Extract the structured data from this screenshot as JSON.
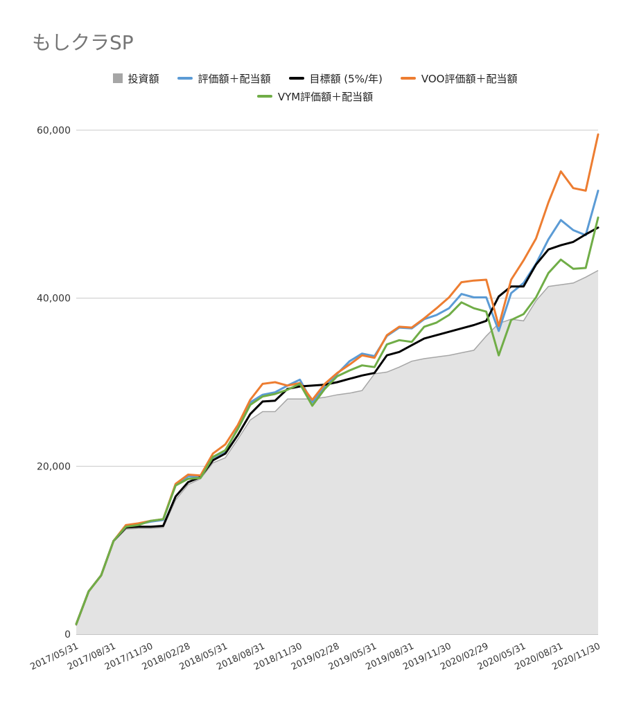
{
  "title": "もしクラSP",
  "chart_data": {
    "type": "line",
    "title": "もしクラSP",
    "xlabel": "",
    "ylabel": "",
    "ylim": [
      0,
      60000
    ],
    "yticks": [
      0,
      20000,
      40000,
      60000
    ],
    "ytick_labels": [
      "0",
      "20,000",
      "40,000",
      "60,000"
    ],
    "grid": true,
    "legend_position": "top",
    "x": [
      "2017/05/31",
      "2017/06/30",
      "2017/07/31",
      "2017/08/31",
      "2017/09/30",
      "2017/10/31",
      "2017/11/30",
      "2017/12/31",
      "2018/01/31",
      "2018/02/28",
      "2018/03/31",
      "2018/04/30",
      "2018/05/31",
      "2018/06/30",
      "2018/07/31",
      "2018/08/31",
      "2018/09/30",
      "2018/10/31",
      "2018/11/30",
      "2018/12/31",
      "2019/01/31",
      "2019/02/28",
      "2019/03/31",
      "2019/04/30",
      "2019/05/31",
      "2019/06/30",
      "2019/07/31",
      "2019/08/31",
      "2019/09/30",
      "2019/10/31",
      "2019/11/30",
      "2019/12/31",
      "2020/01/31",
      "2020/02/29",
      "2020/03/31",
      "2020/04/30",
      "2020/05/31",
      "2020/06/30",
      "2020/07/31",
      "2020/08/31",
      "2020/09/30",
      "2020/10/31",
      "2020/11/30"
    ],
    "x_tick_labels": [
      "2017/05/31",
      "2017/08/31",
      "2017/11/30",
      "2018/02/28",
      "2018/05/31",
      "2018/08/31",
      "2018/11/30",
      "2019/02/28",
      "2019/05/31",
      "2019/08/31",
      "2019/11/30",
      "2020/02/29",
      "2020/05/31",
      "2020/08/31",
      "2020/11/30"
    ],
    "series": [
      {
        "name": "投資額",
        "kind": "area",
        "color": "#a6a6a6",
        "fill": "#e3e3e3",
        "values": [
          1000,
          5000,
          7000,
          11000,
          12500,
          12600,
          12600,
          12700,
          16000,
          17800,
          18500,
          20400,
          21000,
          23200,
          25500,
          26500,
          26500,
          28000,
          28000,
          28000,
          28200,
          28500,
          28700,
          29000,
          31000,
          31200,
          31800,
          32500,
          32800,
          33000,
          33200,
          33500,
          33800,
          35500,
          37000,
          37500,
          37300,
          39700,
          41400,
          41600,
          41800,
          42500,
          43300
        ]
      },
      {
        "name": "評価額＋配当額",
        "kind": "line",
        "color": "#5b9bd5",
        "values": [
          1200,
          5100,
          7000,
          11100,
          12900,
          13100,
          13400,
          13600,
          17800,
          18800,
          18700,
          21000,
          21800,
          24500,
          27600,
          28500,
          28800,
          29600,
          30300,
          27600,
          29500,
          31000,
          32500,
          33400,
          33100,
          35500,
          36500,
          36400,
          37500,
          38000,
          38800,
          40500,
          40100,
          40100,
          36100,
          40600,
          41800,
          44100,
          47000,
          49300,
          48100,
          47500,
          52800
        ]
      },
      {
        "name": "目標額 (5%/年)",
        "kind": "line",
        "color": "#000000",
        "values": [
          1200,
          5100,
          7000,
          11100,
          12700,
          12800,
          12800,
          12900,
          16400,
          18100,
          18700,
          20700,
          21500,
          23700,
          26200,
          27700,
          27800,
          29200,
          29500,
          29600,
          29700,
          30000,
          30400,
          30800,
          31100,
          33200,
          33600,
          34400,
          35200,
          35600,
          36000,
          36400,
          36800,
          37300,
          40200,
          41400,
          41400,
          44000,
          45800,
          46300,
          46700,
          47600,
          48400
        ]
      },
      {
        "name": "VOO評価額＋配当額",
        "kind": "line",
        "color": "#ed7d31",
        "values": [
          1200,
          5100,
          7000,
          11100,
          13000,
          13200,
          13500,
          13700,
          17900,
          19000,
          18900,
          21500,
          22600,
          24900,
          27900,
          29800,
          30000,
          29600,
          29900,
          27900,
          29800,
          31100,
          32100,
          33200,
          32900,
          35600,
          36600,
          36500,
          37600,
          38800,
          40100,
          41900,
          42100,
          42200,
          36700,
          42200,
          44500,
          47100,
          51400,
          55100,
          53100,
          52800,
          59500
        ]
      },
      {
        "name": "VYM評価額＋配当額",
        "kind": "line",
        "color": "#70ad47",
        "values": [
          1200,
          5100,
          7000,
          11100,
          12800,
          13000,
          13500,
          13700,
          17700,
          18500,
          18600,
          21100,
          21900,
          24400,
          27300,
          28300,
          28600,
          29100,
          29800,
          27200,
          29200,
          30700,
          31400,
          32000,
          31800,
          34500,
          35000,
          34800,
          36600,
          37100,
          38000,
          39500,
          38800,
          38400,
          33200,
          37400,
          38100,
          40100,
          43000,
          44600,
          43500,
          43600,
          49600
        ]
      }
    ]
  }
}
